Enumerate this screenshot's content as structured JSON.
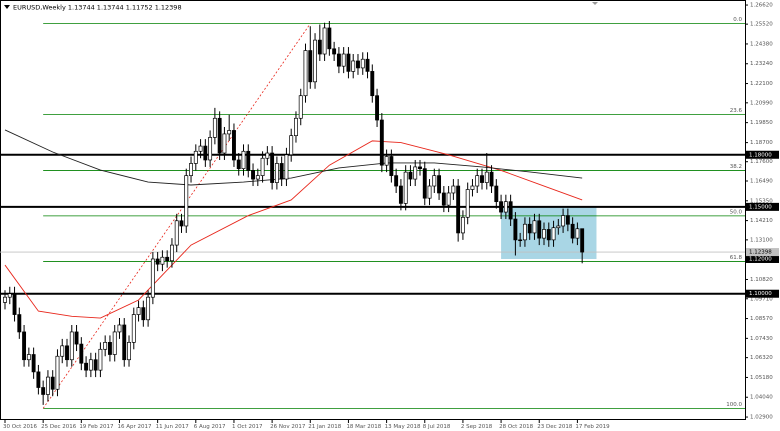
{
  "chart_data": {
    "type": "candlestick",
    "title": "EURUSD,Weekly  1.13744 1.13744 1.11752 1.12398",
    "ylim": [
      1.0273,
      1.2691
    ],
    "xlim": [
      -1,
      155
    ],
    "yticks": [
      {
        "value": 1.2662,
        "label": "1.26620"
      },
      {
        "value": 1.2552,
        "label": "1.25520"
      },
      {
        "value": 1.2438,
        "label": "1.24380"
      },
      {
        "value": 1.2324,
        "label": "1.23240"
      },
      {
        "value": 1.221,
        "label": "1.22100"
      },
      {
        "value": 1.2099,
        "label": "1.20990"
      },
      {
        "value": 1.1985,
        "label": "1.19850"
      },
      {
        "value": 1.187,
        "label": "1.18700"
      },
      {
        "value": 1.176,
        "label": "1.17600"
      },
      {
        "value": 1.1649,
        "label": "1.16490"
      },
      {
        "value": 1.1535,
        "label": "1.15350"
      },
      {
        "value": 1.1421,
        "label": "1.14210"
      },
      {
        "value": 1.131,
        "label": "1.13100"
      },
      {
        "value": 1.1082,
        "label": "1.10820"
      },
      {
        "value": 1.0971,
        "label": "1.09710"
      },
      {
        "value": 1.0857,
        "label": "1.08570"
      },
      {
        "value": 1.0743,
        "label": "1.07430"
      },
      {
        "value": 1.0632,
        "label": "1.06320"
      },
      {
        "value": 1.0518,
        "label": "1.05180"
      },
      {
        "value": 1.0404,
        "label": "1.04040"
      },
      {
        "value": 1.029,
        "label": "1.02900"
      }
    ],
    "xticks": [
      {
        "value": 0,
        "label": "30 Oct 2016"
      },
      {
        "value": 8,
        "label": "25 Dec 2016"
      },
      {
        "value": 16,
        "label": "19 Feb 2017"
      },
      {
        "value": 24,
        "label": "16 Apr 2017"
      },
      {
        "value": 32,
        "label": "11 Jun 2017"
      },
      {
        "value": 40,
        "label": "6 Aug 2017"
      },
      {
        "value": 48,
        "label": "1 Oct 2017"
      },
      {
        "value": 56,
        "label": "26 Nov 2017"
      },
      {
        "value": 64,
        "label": "21 Jan 2018"
      },
      {
        "value": 72,
        "label": "18 Mar 2018"
      },
      {
        "value": 80,
        "label": "13 May 2018"
      },
      {
        "value": 88,
        "label": "8 Jul 2018"
      },
      {
        "value": 96,
        "label": "2 Sep 2018"
      },
      {
        "value": 104,
        "label": "28 Oct 2018"
      },
      {
        "value": 112,
        "label": "23 Dec 2018"
      },
      {
        "value": 120,
        "label": "17 Feb 2019"
      }
    ],
    "candles": {
      "open": [
        1.095,
        1.098,
        1.1,
        1.088,
        1.078,
        1.062,
        1.065,
        1.055,
        1.046,
        1.042,
        1.052,
        1.045,
        1.064,
        1.07,
        1.062,
        1.078,
        1.071,
        1.06,
        1.056,
        1.062,
        1.056,
        1.068,
        1.072,
        1.065,
        1.078,
        1.082,
        1.062,
        1.072,
        1.088,
        1.092,
        1.085,
        1.098,
        1.12,
        1.117,
        1.121,
        1.119,
        1.128,
        1.142,
        1.139,
        1.168,
        1.175,
        1.182,
        1.185,
        1.177,
        1.19,
        1.201,
        1.181,
        1.192,
        1.194,
        1.177,
        1.172,
        1.182,
        1.171,
        1.166,
        1.168,
        1.178,
        1.181,
        1.164,
        1.175,
        1.166,
        1.18,
        1.191,
        1.201,
        1.214,
        1.24,
        1.222,
        1.246,
        1.238,
        1.253,
        1.241,
        1.238,
        1.231,
        1.238,
        1.228,
        1.234,
        1.23,
        1.235,
        1.228,
        1.214,
        1.2,
        1.174,
        1.179,
        1.168,
        1.162,
        1.152,
        1.17,
        1.166,
        1.173,
        1.172,
        1.155,
        1.162,
        1.168,
        1.158,
        1.151,
        1.158,
        1.162,
        1.135,
        1.144,
        1.16,
        1.162,
        1.168,
        1.164,
        1.17,
        1.162,
        1.153,
        1.147,
        1.153,
        1.143,
        1.131,
        1.131,
        1.14,
        1.135,
        1.142,
        1.132,
        1.137,
        1.131,
        1.138,
        1.139,
        1.145,
        1.14,
        1.132,
        1.13744
      ],
      "high": [
        1.102,
        1.104,
        1.104,
        1.092,
        1.082,
        1.069,
        1.069,
        1.059,
        1.05,
        1.056,
        1.056,
        1.068,
        1.074,
        1.074,
        1.082,
        1.082,
        1.075,
        1.064,
        1.066,
        1.066,
        1.072,
        1.076,
        1.076,
        1.082,
        1.086,
        1.086,
        1.076,
        1.092,
        1.096,
        1.096,
        1.102,
        1.124,
        1.124,
        1.125,
        1.125,
        1.132,
        1.146,
        1.146,
        1.172,
        1.179,
        1.186,
        1.189,
        1.189,
        1.194,
        1.207,
        1.205,
        1.196,
        1.203,
        1.198,
        1.181,
        1.186,
        1.186,
        1.175,
        1.172,
        1.182,
        1.185,
        1.185,
        1.179,
        1.179,
        1.184,
        1.195,
        1.205,
        1.218,
        1.244,
        1.254,
        1.25,
        1.255,
        1.256,
        1.257,
        1.245,
        1.242,
        1.242,
        1.242,
        1.238,
        1.238,
        1.239,
        1.239,
        1.232,
        1.218,
        1.204,
        1.183,
        1.183,
        1.172,
        1.166,
        1.174,
        1.174,
        1.177,
        1.177,
        1.176,
        1.166,
        1.172,
        1.172,
        1.162,
        1.162,
        1.166,
        1.166,
        1.148,
        1.164,
        1.166,
        1.172,
        1.172,
        1.181,
        1.174,
        1.166,
        1.157,
        1.157,
        1.157,
        1.147,
        1.135,
        1.144,
        1.144,
        1.146,
        1.146,
        1.141,
        1.141,
        1.142,
        1.143,
        1.149,
        1.149,
        1.144,
        1.141,
        1.13744
      ],
      "low": [
        1.091,
        1.094,
        1.084,
        1.074,
        1.058,
        1.058,
        1.051,
        1.042,
        1.036,
        1.038,
        1.041,
        1.041,
        1.06,
        1.058,
        1.058,
        1.067,
        1.056,
        1.052,
        1.052,
        1.052,
        1.052,
        1.064,
        1.061,
        1.061,
        1.074,
        1.058,
        1.058,
        1.068,
        1.084,
        1.081,
        1.081,
        1.094,
        1.113,
        1.113,
        1.115,
        1.115,
        1.124,
        1.135,
        1.135,
        1.164,
        1.171,
        1.178,
        1.173,
        1.173,
        1.186,
        1.177,
        1.177,
        1.188,
        1.173,
        1.168,
        1.168,
        1.167,
        1.162,
        1.162,
        1.164,
        1.174,
        1.16,
        1.16,
        1.162,
        1.162,
        1.176,
        1.187,
        1.197,
        1.21,
        1.218,
        1.218,
        1.234,
        1.234,
        1.237,
        1.234,
        1.227,
        1.227,
        1.224,
        1.224,
        1.226,
        1.226,
        1.224,
        1.21,
        1.196,
        1.17,
        1.17,
        1.164,
        1.158,
        1.148,
        1.148,
        1.162,
        1.162,
        1.168,
        1.151,
        1.151,
        1.158,
        1.154,
        1.147,
        1.147,
        1.154,
        1.13,
        1.131,
        1.14,
        1.156,
        1.158,
        1.16,
        1.16,
        1.158,
        1.149,
        1.143,
        1.143,
        1.139,
        1.122,
        1.127,
        1.127,
        1.131,
        1.131,
        1.128,
        1.128,
        1.127,
        1.127,
        1.134,
        1.135,
        1.136,
        1.129,
        1.128,
        1.11752
      ],
      "close": [
        1.098,
        1.1,
        1.088,
        1.078,
        1.062,
        1.065,
        1.055,
        1.046,
        1.042,
        1.052,
        1.045,
        1.064,
        1.07,
        1.062,
        1.078,
        1.071,
        1.06,
        1.056,
        1.062,
        1.056,
        1.068,
        1.072,
        1.065,
        1.078,
        1.082,
        1.062,
        1.072,
        1.088,
        1.092,
        1.085,
        1.098,
        1.12,
        1.117,
        1.121,
        1.119,
        1.128,
        1.142,
        1.139,
        1.168,
        1.175,
        1.182,
        1.185,
        1.177,
        1.19,
        1.201,
        1.181,
        1.192,
        1.194,
        1.177,
        1.172,
        1.182,
        1.171,
        1.166,
        1.168,
        1.178,
        1.181,
        1.164,
        1.175,
        1.166,
        1.18,
        1.191,
        1.201,
        1.214,
        1.24,
        1.222,
        1.246,
        1.238,
        1.253,
        1.241,
        1.238,
        1.231,
        1.238,
        1.228,
        1.234,
        1.23,
        1.235,
        1.228,
        1.214,
        1.2,
        1.174,
        1.179,
        1.168,
        1.162,
        1.152,
        1.17,
        1.166,
        1.173,
        1.172,
        1.155,
        1.162,
        1.168,
        1.158,
        1.151,
        1.158,
        1.162,
        1.135,
        1.144,
        1.16,
        1.162,
        1.168,
        1.164,
        1.17,
        1.162,
        1.153,
        1.147,
        1.153,
        1.143,
        1.131,
        1.131,
        1.14,
        1.135,
        1.142,
        1.132,
        1.137,
        1.131,
        1.138,
        1.139,
        1.145,
        1.14,
        1.132,
        1.1374,
        1.12398
      ]
    },
    "series": [
      {
        "color": "#e8271c",
        "x": [
          0,
          7,
          14,
          20,
          28,
          39,
          51,
          60,
          68,
          77,
          83,
          93,
          104,
          112,
          121
        ],
        "values": [
          1.1165,
          1.09,
          1.087,
          1.086,
          1.0964,
          1.128,
          1.145,
          1.154,
          1.174,
          1.188,
          1.187,
          1.18,
          1.171,
          1.163,
          1.154
        ]
      },
      {
        "color": "#222222",
        "x": [
          0,
          10,
          20,
          30,
          39,
          50,
          60,
          70,
          80,
          90,
          100,
          110,
          121
        ],
        "values": [
          1.1943,
          1.1816,
          1.1712,
          1.1643,
          1.1626,
          1.1643,
          1.1666,
          1.1724,
          1.1753,
          1.1753,
          1.173,
          1.1701,
          1.1666
        ]
      }
    ],
    "levels": [
      {
        "value": 1.18,
        "label": "1.18000"
      },
      {
        "value": 1.15,
        "label": "1.15000"
      },
      {
        "value": 1.1,
        "label": "1.10000"
      }
    ],
    "zone": {
      "ylim": [
        1.12,
        1.15
      ],
      "x": [
        104,
        124
      ],
      "color": "#a9d6e5",
      "label": {
        "value": 1.12,
        "label": "1.12000"
      }
    },
    "last_price": {
      "value": 1.12398,
      "label": "1.12398"
    },
    "fib": {
      "x": [
        8,
        64
      ],
      "prices": [
        1.034,
        1.2555
      ],
      "color": "#e8271c",
      "level_color": "#008000",
      "levels": [
        {
          "label": "0.0",
          "price": 1.2555
        },
        {
          "label": "23.6",
          "price": 1.2032
        },
        {
          "label": "38.2",
          "price": 1.1709
        },
        {
          "label": "50.0",
          "price": 1.1448
        },
        {
          "label": "61.8",
          "price": 1.1186
        },
        {
          "label": "100.0",
          "price": 1.034
        }
      ]
    }
  }
}
